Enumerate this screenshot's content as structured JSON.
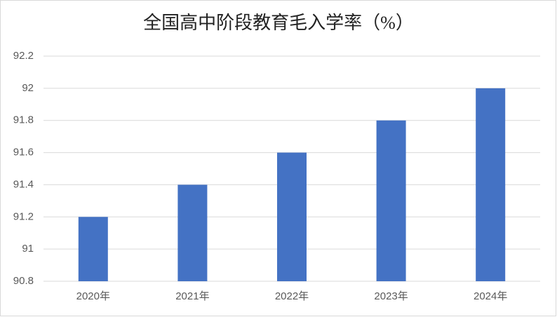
{
  "chart_data": {
    "type": "bar",
    "title": "全国高中阶段教育毛入学率（%）",
    "categories": [
      "2020年",
      "2021年",
      "2022年",
      "2023年",
      "2024年"
    ],
    "values": [
      91.2,
      91.4,
      91.6,
      91.8,
      92
    ],
    "color": "#4472c4",
    "ylim": [
      90.8,
      92.2
    ],
    "yticks": [
      90.8,
      91,
      91.2,
      91.4,
      91.6,
      91.8,
      92,
      92.2
    ],
    "grid": true
  }
}
